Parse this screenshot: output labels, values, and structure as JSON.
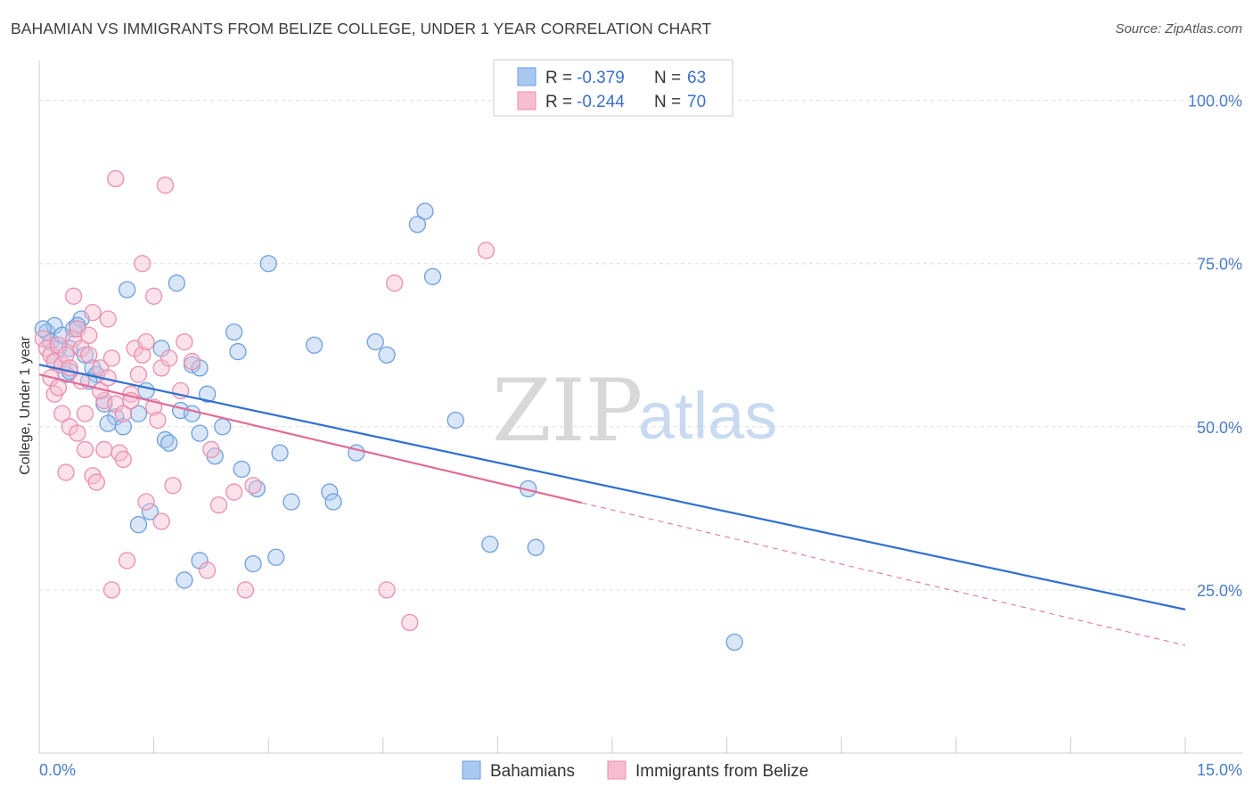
{
  "title": "BAHAMIAN VS IMMIGRANTS FROM BELIZE COLLEGE, UNDER 1 YEAR CORRELATION CHART",
  "source": "Source: ZipAtlas.com",
  "watermark": {
    "part1": "ZIP",
    "part2": "atlas"
  },
  "colors": {
    "blue_fill": "#a9c8ef",
    "blue_stroke": "#6e9fdc",
    "blue_line": "#2f6fd0",
    "pink_fill": "#f6bcd0",
    "pink_stroke": "#ea8fb0",
    "pink_line": "#e26a96",
    "grid": "#dddddd",
    "tick_text": "#4a7cc7"
  },
  "legend": {
    "rows": [
      {
        "r_label": "R =",
        "r_value": "-0.379",
        "n_label": "N =",
        "n_value": "63",
        "color": "blue"
      },
      {
        "r_label": "R =",
        "r_value": "-0.244",
        "n_label": "N =",
        "n_value": "70",
        "color": "pink"
      }
    ]
  },
  "bottom_legend": [
    "Bahamians",
    "Immigrants from Belize"
  ],
  "chart_data": {
    "type": "scatter",
    "title": "BAHAMIAN VS IMMIGRANTS FROM BELIZE COLLEGE, UNDER 1 YEAR CORRELATION CHART",
    "xlabel": "",
    "ylabel": "College, Under 1 year",
    "xlim": [
      0,
      15
    ],
    "ylim": [
      0,
      105
    ],
    "x_tick_labels": [
      "0.0%",
      "15.0%"
    ],
    "y_tick_labels": [
      "100.0%",
      "75.0%",
      "50.0%",
      "25.0%"
    ],
    "y_ticks": [
      100,
      75,
      50,
      25
    ],
    "grid": true,
    "legend_position": "top-center",
    "series": [
      {
        "name": "Bahamians",
        "color": "blue",
        "r": -0.379,
        "n": 63,
        "trend": {
          "x0": 0.0,
          "y0": 59.5,
          "x1": 15.0,
          "y1": 22.0,
          "dashed_from": null
        },
        "points": [
          [
            0.1,
            64.5
          ],
          [
            0.2,
            65.5
          ],
          [
            0.15,
            63
          ],
          [
            0.25,
            62
          ],
          [
            0.3,
            64
          ],
          [
            0.4,
            62
          ],
          [
            0.45,
            65
          ],
          [
            0.55,
            66.5
          ],
          [
            0.5,
            65.5
          ],
          [
            0.6,
            61
          ],
          [
            0.35,
            58
          ],
          [
            0.7,
            59
          ],
          [
            0.75,
            58
          ],
          [
            0.85,
            53.5
          ],
          [
            1.0,
            51.5
          ],
          [
            1.1,
            50
          ],
          [
            1.3,
            52
          ],
          [
            0.9,
            50.5
          ],
          [
            1.15,
            71
          ],
          [
            1.3,
            35
          ],
          [
            1.45,
            37
          ],
          [
            1.4,
            55.5
          ],
          [
            1.6,
            62
          ],
          [
            1.65,
            48
          ],
          [
            1.7,
            47.5
          ],
          [
            1.8,
            72
          ],
          [
            1.85,
            52.5
          ],
          [
            2.0,
            52
          ],
          [
            2.1,
            49
          ],
          [
            2.0,
            59.5
          ],
          [
            2.1,
            59
          ],
          [
            2.2,
            55
          ],
          [
            2.3,
            45.5
          ],
          [
            2.4,
            50
          ],
          [
            2.55,
            64.5
          ],
          [
            2.6,
            61.5
          ],
          [
            2.65,
            43.5
          ],
          [
            2.8,
            29
          ],
          [
            2.85,
            40.5
          ],
          [
            3.0,
            75
          ],
          [
            3.1,
            30
          ],
          [
            3.15,
            46
          ],
          [
            3.3,
            38.5
          ],
          [
            3.6,
            62.5
          ],
          [
            3.8,
            40
          ],
          [
            3.85,
            38.5
          ],
          [
            4.15,
            46
          ],
          [
            4.4,
            63
          ],
          [
            4.55,
            61
          ],
          [
            4.95,
            81
          ],
          [
            5.05,
            83
          ],
          [
            5.15,
            73
          ],
          [
            5.45,
            51
          ],
          [
            5.9,
            32
          ],
          [
            6.4,
            40.5
          ],
          [
            6.5,
            31.5
          ],
          [
            1.9,
            26.5
          ],
          [
            2.1,
            29.5
          ],
          [
            9.1,
            17
          ],
          [
            0.05,
            65
          ],
          [
            0.2,
            60
          ],
          [
            0.4,
            58.5
          ],
          [
            0.65,
            57
          ]
        ]
      },
      {
        "name": "Immigrants from Belize",
        "color": "pink",
        "r": -0.244,
        "n": 70,
        "trend": {
          "x0": 0.0,
          "y0": 58.0,
          "x1": 15.0,
          "y1": 16.5,
          "dashed_from": 7.1
        },
        "points": [
          [
            0.05,
            63.5
          ],
          [
            0.1,
            62
          ],
          [
            0.15,
            61
          ],
          [
            0.2,
            60
          ],
          [
            0.25,
            62.5
          ],
          [
            0.3,
            59.5
          ],
          [
            0.35,
            61
          ],
          [
            0.45,
            63.5
          ],
          [
            0.5,
            65
          ],
          [
            0.55,
            62
          ],
          [
            0.65,
            64
          ],
          [
            0.7,
            67.5
          ],
          [
            0.8,
            59
          ],
          [
            0.85,
            54
          ],
          [
            0.9,
            66.5
          ],
          [
            0.95,
            60.5
          ],
          [
            1.0,
            53.5
          ],
          [
            1.1,
            52
          ],
          [
            1.2,
            55
          ],
          [
            1.25,
            62
          ],
          [
            1.35,
            61
          ],
          [
            1.4,
            63
          ],
          [
            1.5,
            53
          ],
          [
            1.55,
            51
          ],
          [
            1.6,
            59
          ],
          [
            1.7,
            60.5
          ],
          [
            1.85,
            55.5
          ],
          [
            1.9,
            63
          ],
          [
            0.2,
            55
          ],
          [
            0.3,
            52
          ],
          [
            0.35,
            43
          ],
          [
            0.4,
            50
          ],
          [
            0.5,
            49
          ],
          [
            0.6,
            46.5
          ],
          [
            0.7,
            42.5
          ],
          [
            0.75,
            41.5
          ],
          [
            0.85,
            46.5
          ],
          [
            1.05,
            46
          ],
          [
            1.1,
            45
          ],
          [
            1.15,
            29.5
          ],
          [
            1.35,
            75
          ],
          [
            1.5,
            70
          ],
          [
            1.65,
            87
          ],
          [
            1.75,
            41
          ],
          [
            1.6,
            35.5
          ],
          [
            1.4,
            38.5
          ],
          [
            2.25,
            46.5
          ],
          [
            2.35,
            38
          ],
          [
            2.55,
            40
          ],
          [
            2.7,
            25
          ],
          [
            2.8,
            41
          ],
          [
            0.45,
            70
          ],
          [
            0.6,
            52
          ],
          [
            0.95,
            25
          ],
          [
            1.0,
            88
          ],
          [
            1.2,
            54
          ],
          [
            2.2,
            28
          ],
          [
            4.65,
            72
          ],
          [
            4.55,
            25
          ],
          [
            4.85,
            20
          ],
          [
            5.85,
            77
          ],
          [
            0.15,
            57.5
          ],
          [
            0.25,
            56
          ],
          [
            0.4,
            59
          ],
          [
            0.55,
            57
          ],
          [
            0.65,
            61
          ],
          [
            0.8,
            55.5
          ],
          [
            0.9,
            57.5
          ],
          [
            1.3,
            58
          ],
          [
            2.0,
            60
          ]
        ]
      }
    ]
  }
}
